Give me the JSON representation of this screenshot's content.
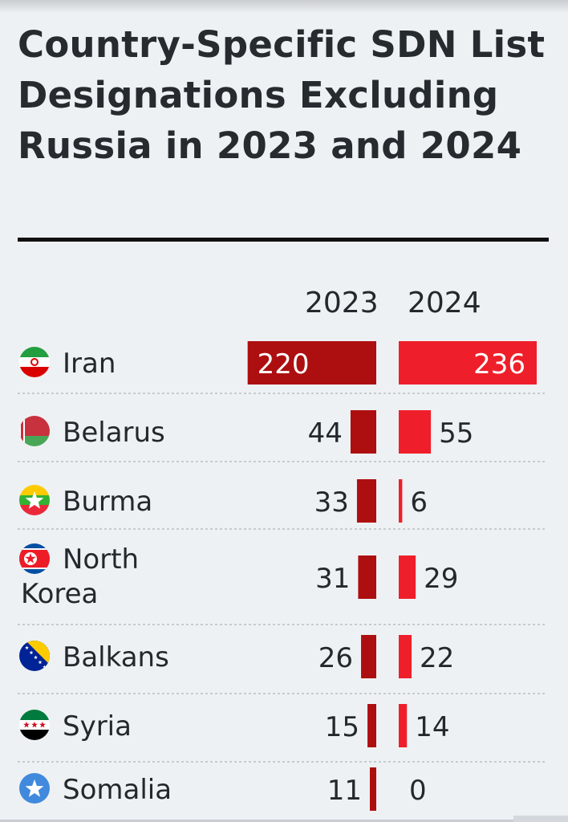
{
  "title": "Country-Specific SDN List Designations Excluding Russia in 2023 and 2024",
  "colors": {
    "bar_2023": "#ad0f10",
    "bar_2024": "#ee1f2a",
    "separator": "#c6cbd1",
    "text": "#23282d"
  },
  "chart_data": {
    "type": "bar",
    "title": "Country-Specific SDN List Designations Excluding Russia in 2023 and 2024",
    "categories": [
      "Iran",
      "Belarus",
      "Burma",
      "North Korea",
      "Balkans",
      "Syria",
      "Somalia"
    ],
    "series": [
      {
        "name": "2023",
        "values": [
          220,
          44,
          33,
          31,
          26,
          15,
          11
        ]
      },
      {
        "name": "2024",
        "values": [
          236,
          55,
          6,
          29,
          22,
          14,
          0
        ]
      }
    ],
    "flag_icons": [
      "iran-flag-icon",
      "belarus-flag-icon",
      "burma-flag-icon",
      "north-korea-flag-icon",
      "bosnia-flag-icon",
      "syria-flag-icon",
      "somalia-flag-icon"
    ],
    "xlabel": "",
    "ylabel": "",
    "xlim": [
      0,
      236
    ],
    "grid": false,
    "legend": "column-headers-top"
  }
}
